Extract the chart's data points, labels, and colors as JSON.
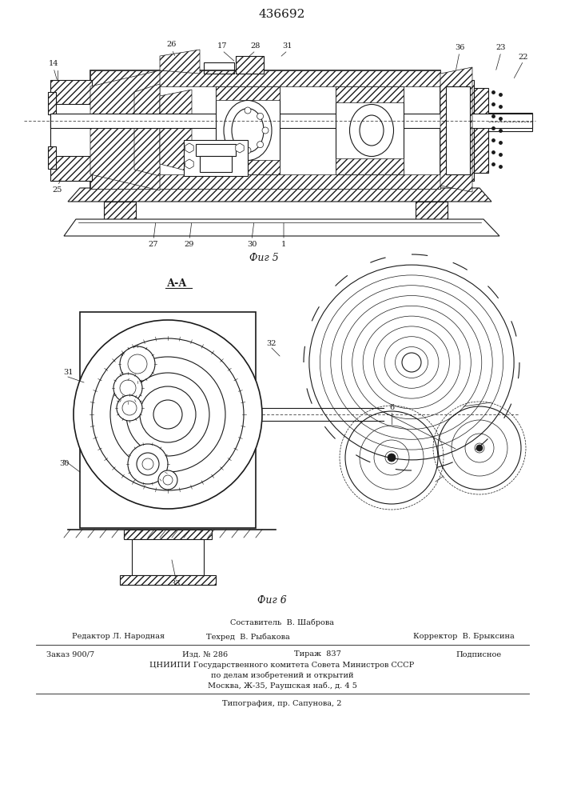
{
  "title": "436692",
  "fig5_label": "Фиг 5",
  "fig6_label": "Фиг 6",
  "section_label": "А-А",
  "footer_line1": "Составитель  В. Шаброва",
  "footer_line2_col1": "Редактор Л. Народная",
  "footer_line2_col2": "Техред  В. Рыбакова",
  "footer_line2_col3": "Корректор  В. Брыксина",
  "footer_line3_col1": "Заказ 900/7",
  "footer_line3_col2": "Изд. № 286",
  "footer_line3_col3": "Тираж  837",
  "footer_line3_col4": "Подписное",
  "footer_line4": "ЦНИИПИ Государственного комитета Совета Министров СССР",
  "footer_line5": "по делам изобретений и открытий",
  "footer_line6": "Москва, Ж-35, Раушская наб., д. 4 5",
  "footer_line7": "Типография, пр. Сапунова, 2",
  "bg_color": "#ffffff",
  "line_color": "#1a1a1a",
  "hatch_color": "#333333"
}
